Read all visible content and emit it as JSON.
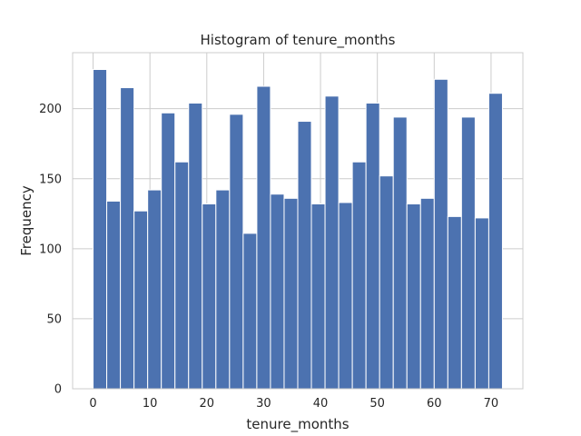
{
  "chart_data": {
    "type": "bar",
    "title": "Histogram of tenure_months",
    "xlabel": "tenure_months",
    "ylabel": "Frequency",
    "xlim": [
      -3.6,
      75.6
    ],
    "ylim": [
      0,
      240
    ],
    "xticks": [
      0,
      10,
      20,
      30,
      40,
      50,
      60,
      70
    ],
    "yticks": [
      0,
      50,
      100,
      150,
      200
    ],
    "grid": true,
    "bar_color": "#4c72b0",
    "bin_edges": [
      0.0,
      2.4,
      4.8,
      7.2,
      9.6,
      12.0,
      14.4,
      16.8,
      19.2,
      21.6,
      24.0,
      26.4,
      28.8,
      31.2,
      33.6,
      36.0,
      38.4,
      40.8,
      43.2,
      45.6,
      48.0,
      50.4,
      52.8,
      55.2,
      57.6,
      60.0,
      62.4,
      64.8,
      67.2,
      69.6,
      72.0
    ],
    "values": [
      228,
      134,
      215,
      127,
      142,
      197,
      162,
      204,
      132,
      142,
      196,
      111,
      216,
      139,
      136,
      191,
      132,
      209,
      133,
      162,
      204,
      152,
      194,
      132,
      136,
      221,
      123,
      194,
      122,
      211
    ]
  }
}
